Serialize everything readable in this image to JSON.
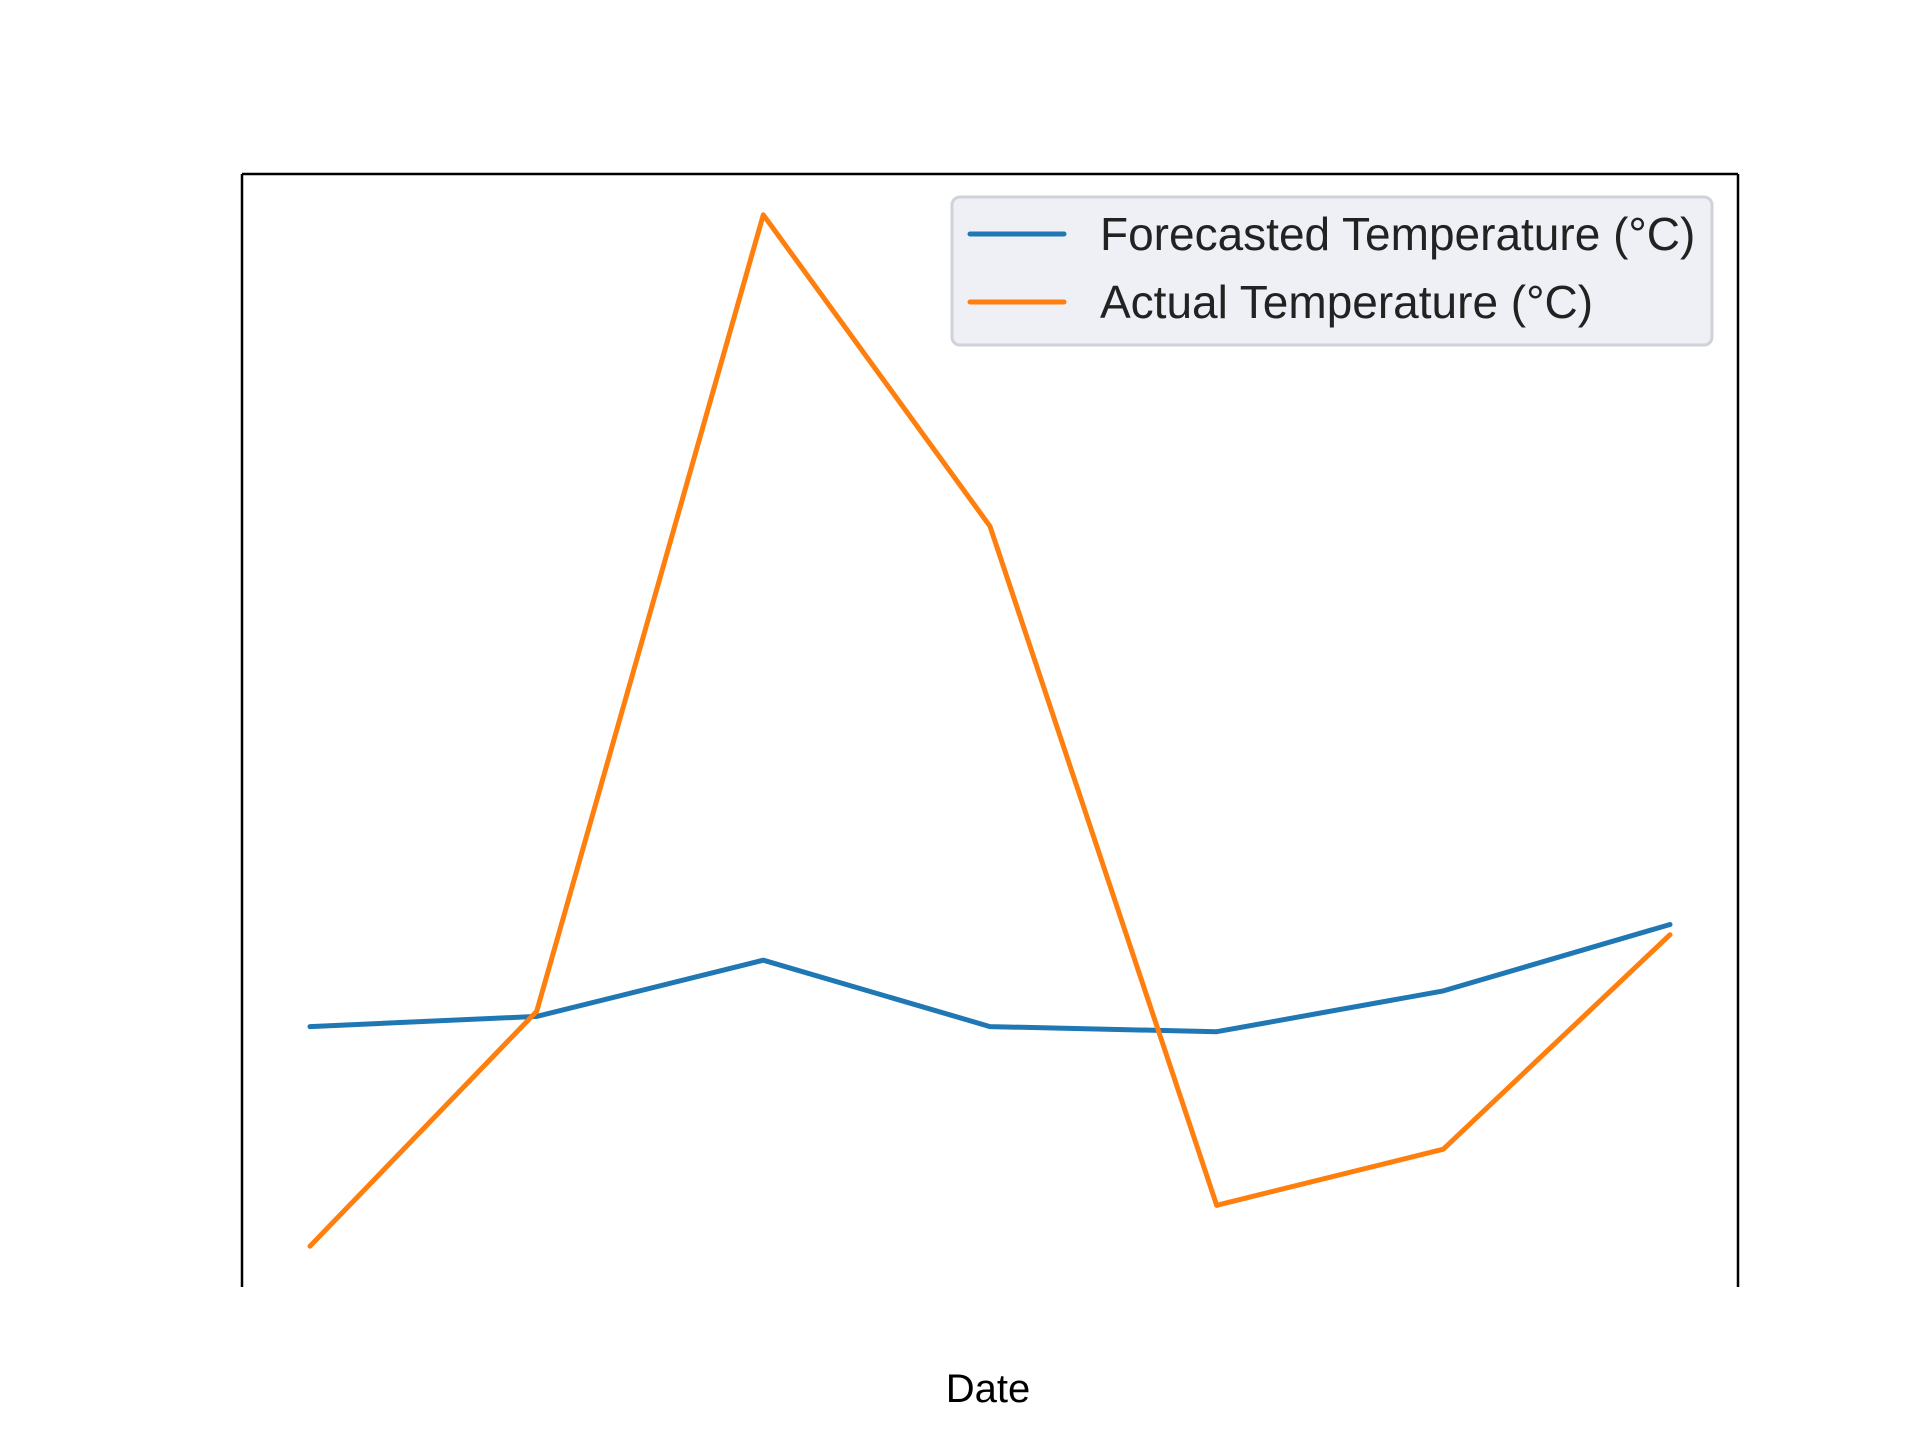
{
  "chart_data": {
    "type": "line",
    "title": "",
    "xlabel": "Date",
    "ylabel": "",
    "x": [
      1,
      2,
      3,
      4,
      5,
      6,
      7
    ],
    "series": [
      {
        "name": "Forecasted Temperature (°C)",
        "color": "#1f77b4",
        "values": [
          15.3,
          15.5,
          16.6,
          15.3,
          15.2,
          16.0,
          17.3
        ]
      },
      {
        "name": "Actual Temperature (°C)",
        "color": "#ff7f0e",
        "values": [
          11.0,
          15.6,
          31.2,
          25.1,
          11.8,
          12.9,
          17.1
        ]
      }
    ],
    "ylim": [
      10.2,
      32.0
    ],
    "xlim": [
      0.7,
      7.3
    ],
    "grid": false,
    "legend_position": "top-right",
    "axes_visible": [
      "left",
      "right",
      "top"
    ]
  }
}
